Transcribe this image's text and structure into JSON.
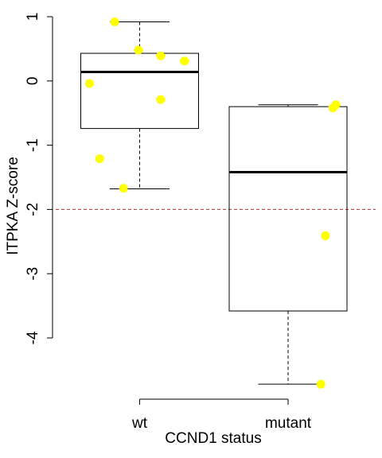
{
  "chart_data": {
    "type": "box",
    "xlabel": "CCND1 status",
    "ylabel": "ITPKA Z-score",
    "ylim": [
      -5.0,
      1.0
    ],
    "y_ticks": [
      1,
      0,
      -1,
      -2,
      -3,
      -4
    ],
    "y_tick_labels": [
      "1",
      "0",
      "-1",
      "-2",
      "-3",
      "-4"
    ],
    "categories": [
      "wt",
      "mutant"
    ],
    "reference_line": {
      "y": -2,
      "color": "#b03030",
      "style": "dashed"
    },
    "colors": {
      "points": "#ffff00",
      "box": "#000000",
      "median": "#000000"
    },
    "boxes": [
      {
        "category": "wt",
        "lower_whisker": -1.68,
        "q1": -0.74,
        "median": 0.14,
        "q3": 0.43,
        "upper_whisker": 0.92
      },
      {
        "category": "mutant",
        "lower_whisker": -4.72,
        "q1": -3.58,
        "median": -1.42,
        "q3": -0.4,
        "upper_whisker": -0.37
      }
    ],
    "points": [
      {
        "category": "wt",
        "jitter": 0.83,
        "y": 0.92
      },
      {
        "category": "wt",
        "jitter": 0.99,
        "y": 0.48
      },
      {
        "category": "wt",
        "jitter": 1.14,
        "y": 0.39
      },
      {
        "category": "wt",
        "jitter": 1.3,
        "y": 0.31
      },
      {
        "category": "wt",
        "jitter": 0.66,
        "y": -0.04
      },
      {
        "category": "wt",
        "jitter": 1.14,
        "y": -0.29
      },
      {
        "category": "wt",
        "jitter": 0.73,
        "y": -1.21
      },
      {
        "category": "wt",
        "jitter": 0.89,
        "y": -1.67
      },
      {
        "category": "mutant",
        "jitter": 2.32,
        "y": -0.37
      },
      {
        "category": "mutant",
        "jitter": 2.3,
        "y": -0.42
      },
      {
        "category": "mutant",
        "jitter": 2.25,
        "y": -2.41
      },
      {
        "category": "mutant",
        "jitter": 2.22,
        "y": -4.72
      }
    ]
  }
}
